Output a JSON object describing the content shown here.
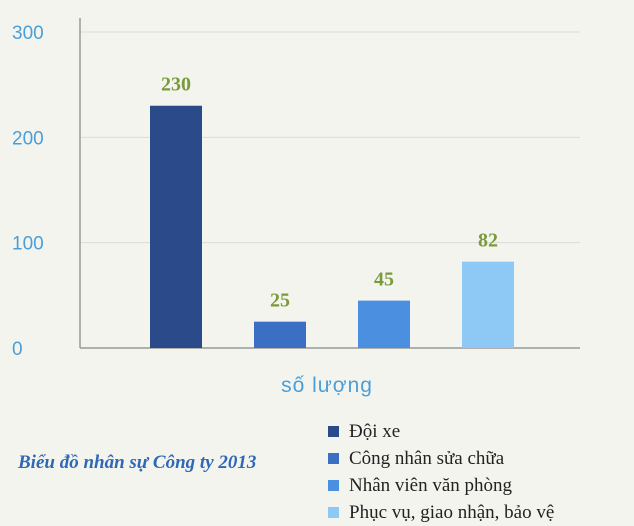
{
  "chart_data": {
    "type": "bar",
    "title": "Biểu đồ nhân sự Công ty 2013",
    "xlabel": "số lượng",
    "ylabel": "",
    "ylim": [
      0,
      300
    ],
    "yticks": [
      "0",
      "100",
      "200",
      "300"
    ],
    "categories": [
      "Đội xe",
      "Công nhân sửa chữa",
      "Nhân viên văn phòng",
      "Phục vụ, giao nhận, bảo vệ"
    ],
    "values": [
      230,
      25,
      45,
      82
    ],
    "colors": [
      "#2b4a8a",
      "#3a6fc4",
      "#4a8fe0",
      "#8ec8f4"
    ],
    "data_label_color": "#7a9a3c",
    "grid": true,
    "legend_placement": "bottom-right"
  }
}
